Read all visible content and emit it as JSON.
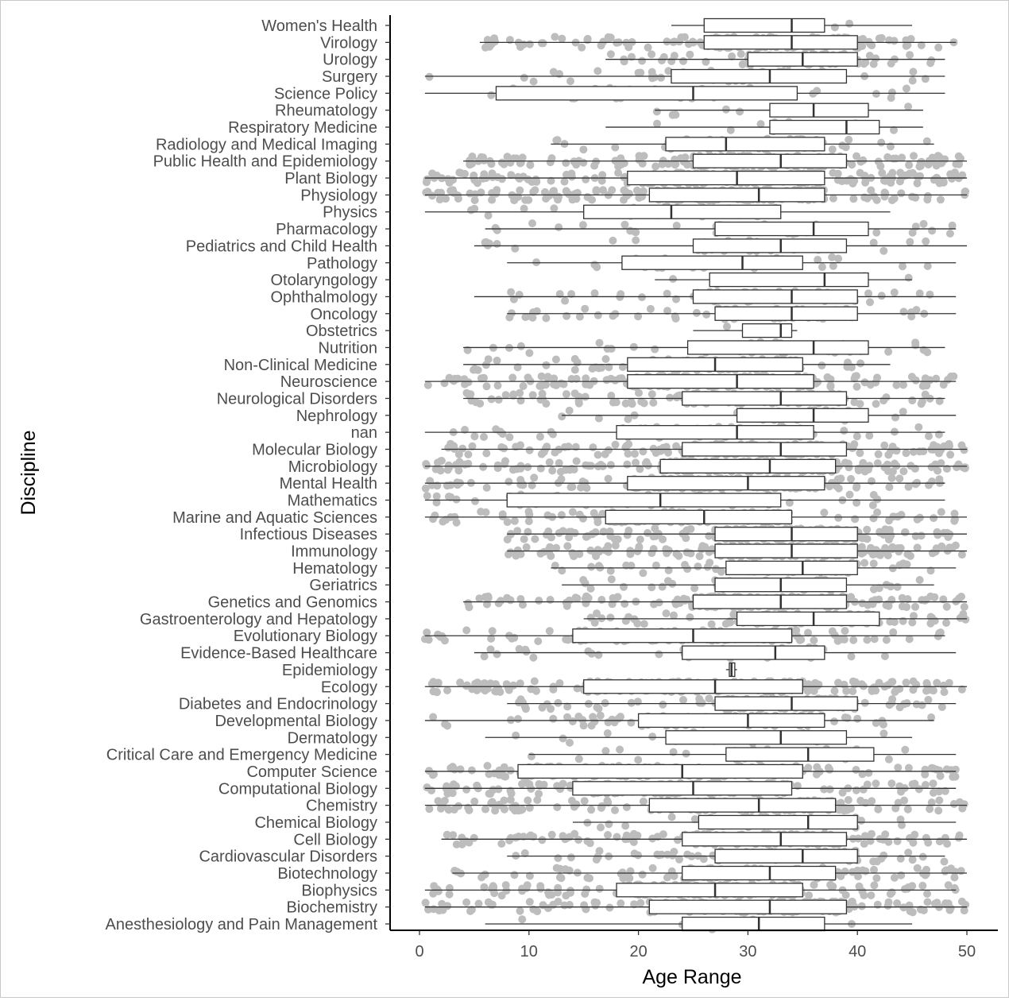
{
  "chart_data": {
    "type": "boxplot",
    "orientation": "horizontal",
    "xlabel": "Age Range",
    "ylabel": "Discipline",
    "xlim": [
      -2.5,
      52.5
    ],
    "xticks": [
      0,
      10,
      20,
      30,
      40,
      50
    ],
    "grid": false,
    "legend": "none",
    "colors": {
      "points": "#bdbdbd",
      "box_fill": "#ffffff",
      "box_stroke": "#333333",
      "axis": "#000000"
    },
    "categories": [
      "Women's Health",
      "Virology",
      "Urology",
      "Surgery",
      "Science Policy",
      "Rheumatology",
      "Respiratory Medicine",
      "Radiology and Medical Imaging",
      "Public Health and Epidemiology",
      "Plant Biology",
      "Physiology",
      "Physics",
      "Pharmacology",
      "Pediatrics and Child Health",
      "Pathology",
      "Otolaryngology",
      "Ophthalmology",
      "Oncology",
      "Obstetrics",
      "Nutrition",
      "Non-Clinical Medicine",
      "Neuroscience",
      "Neurological Disorders",
      "Nephrology",
      "nan",
      "Molecular Biology",
      "Microbiology",
      "Mental Health",
      "Mathematics",
      "Marine and Aquatic Sciences",
      "Infectious Diseases",
      "Immunology",
      "Hematology",
      "Geriatrics",
      "Genetics and Genomics",
      "Gastroenterology and Hepatology",
      "Evolutionary Biology",
      "Evidence-Based Healthcare",
      "Epidemiology",
      "Ecology",
      "Diabetes and Endocrinology",
      "Developmental Biology",
      "Dermatology",
      "Critical Care and Emergency Medicine",
      "Computer Science",
      "Computational Biology",
      "Chemistry",
      "Chemical Biology",
      "Cell Biology",
      "Cardiovascular Disorders",
      "Biotechnology",
      "Biophysics",
      "Biochemistry",
      "Anesthesiology and Pain Management"
    ],
    "boxes": [
      {
        "min": 23,
        "q1": 26,
        "median": 34,
        "q3": 37,
        "max": 45,
        "density": 0.02
      },
      {
        "min": 5.5,
        "q1": 26,
        "median": 34,
        "q3": 40,
        "max": 49,
        "density": 0.8
      },
      {
        "min": 17,
        "q1": 30,
        "median": 35,
        "q3": 40,
        "max": 48,
        "density": 0.35
      },
      {
        "min": 0.5,
        "q1": 23,
        "median": 32,
        "q3": 39,
        "max": 48,
        "density": 0.2
      },
      {
        "min": 0.5,
        "q1": 7,
        "median": 25,
        "q3": 34.5,
        "max": 48,
        "density": 0.15
      },
      {
        "min": 21.5,
        "q1": 32,
        "median": 36,
        "q3": 41,
        "max": 46,
        "density": 0.04
      },
      {
        "min": 17,
        "q1": 32,
        "median": 39,
        "q3": 42,
        "max": 46,
        "density": 0.04
      },
      {
        "min": 12,
        "q1": 22.5,
        "median": 28,
        "q3": 37,
        "max": 47,
        "density": 0.25
      },
      {
        "min": 4,
        "q1": 25,
        "median": 33,
        "q3": 39,
        "max": 50,
        "density": 1.0
      },
      {
        "min": 0.5,
        "q1": 19,
        "median": 29,
        "q3": 37,
        "max": 50,
        "density": 1.0
      },
      {
        "min": 0.5,
        "q1": 21,
        "median": 31,
        "q3": 37,
        "max": 50,
        "density": 1.0
      },
      {
        "min": 0.5,
        "q1": 15,
        "median": 23,
        "q3": 33,
        "max": 43,
        "density": 0.12
      },
      {
        "min": 6,
        "q1": 27,
        "median": 36,
        "q3": 41,
        "max": 49,
        "density": 0.15
      },
      {
        "min": 5,
        "q1": 25,
        "median": 33,
        "q3": 39,
        "max": 50,
        "density": 0.15
      },
      {
        "min": 8,
        "q1": 18.5,
        "median": 29.5,
        "q3": 35,
        "max": 49,
        "density": 0.15
      },
      {
        "min": 21.5,
        "q1": 26.5,
        "median": 37,
        "q3": 41,
        "max": 45,
        "density": 0.04
      },
      {
        "min": 5,
        "q1": 25,
        "median": 34,
        "q3": 40,
        "max": 49,
        "density": 0.3
      },
      {
        "min": 8,
        "q1": 27,
        "median": 34,
        "q3": 40,
        "max": 49,
        "density": 0.3
      },
      {
        "min": 25,
        "q1": 29.5,
        "median": 33,
        "q3": 34,
        "max": 34.5,
        "density": 0.01
      },
      {
        "min": 4,
        "q1": 24.5,
        "median": 36,
        "q3": 41,
        "max": 48,
        "density": 0.2
      },
      {
        "min": 4,
        "q1": 19,
        "median": 27,
        "q3": 35,
        "max": 43,
        "density": 0.4
      },
      {
        "min": 0.5,
        "q1": 19,
        "median": 29,
        "q3": 36,
        "max": 49,
        "density": 1.0
      },
      {
        "min": 4,
        "q1": 24,
        "median": 33,
        "q3": 39,
        "max": 48,
        "density": 0.6
      },
      {
        "min": 13,
        "q1": 29,
        "median": 36,
        "q3": 41,
        "max": 49,
        "density": 0.15
      },
      {
        "min": 0.5,
        "q1": 18,
        "median": 29,
        "q3": 36,
        "max": 48,
        "density": 0.3
      },
      {
        "min": 2,
        "q1": 24,
        "median": 33,
        "q3": 39,
        "max": 50,
        "density": 1.0
      },
      {
        "min": 0.5,
        "q1": 22,
        "median": 32,
        "q3": 38,
        "max": 50,
        "density": 1.0
      },
      {
        "min": 0.5,
        "q1": 19,
        "median": 30,
        "q3": 37,
        "max": 48,
        "density": 0.8
      },
      {
        "min": 0.5,
        "q1": 8,
        "median": 22,
        "q3": 33,
        "max": 48,
        "density": 0.25
      },
      {
        "min": 0.5,
        "q1": 17,
        "median": 26,
        "q3": 34,
        "max": 50,
        "density": 0.6
      },
      {
        "min": 8,
        "q1": 27,
        "median": 34,
        "q3": 40,
        "max": 50,
        "density": 1.0
      },
      {
        "min": 8,
        "q1": 27,
        "median": 34,
        "q3": 40,
        "max": 50,
        "density": 1.0
      },
      {
        "min": 12,
        "q1": 28,
        "median": 35,
        "q3": 40,
        "max": 49,
        "density": 0.3
      },
      {
        "min": 13,
        "q1": 27,
        "median": 33,
        "q3": 39,
        "max": 47,
        "density": 0.2
      },
      {
        "min": 4,
        "q1": 25,
        "median": 33,
        "q3": 39,
        "max": 50,
        "density": 1.0
      },
      {
        "min": 15,
        "q1": 29,
        "median": 36,
        "q3": 42,
        "max": 50,
        "density": 0.4
      },
      {
        "min": 0.5,
        "q1": 14,
        "median": 25,
        "q3": 34,
        "max": 48,
        "density": 0.6
      },
      {
        "min": 5,
        "q1": 24,
        "median": 32.5,
        "q3": 37,
        "max": 49,
        "density": 0.2
      },
      {
        "min": 28,
        "q1": 28.3,
        "median": 28.5,
        "q3": 28.8,
        "max": 29,
        "density": 0.0
      },
      {
        "min": 0.5,
        "q1": 15,
        "median": 27,
        "q3": 35,
        "max": 50,
        "density": 1.0
      },
      {
        "min": 8,
        "q1": 27,
        "median": 34,
        "q3": 40,
        "max": 49,
        "density": 0.6
      },
      {
        "min": 0.5,
        "q1": 20,
        "median": 30,
        "q3": 37,
        "max": 47,
        "density": 0.4
      },
      {
        "min": 6,
        "q1": 22.5,
        "median": 33,
        "q3": 39,
        "max": 45,
        "density": 0.1
      },
      {
        "min": 10,
        "q1": 28,
        "median": 35.5,
        "q3": 41.5,
        "max": 49,
        "density": 0.15
      },
      {
        "min": 0.5,
        "q1": 9,
        "median": 24,
        "q3": 35,
        "max": 49,
        "density": 0.8
      },
      {
        "min": 0.5,
        "q1": 14,
        "median": 25,
        "q3": 34,
        "max": 49,
        "density": 0.8
      },
      {
        "min": 0.5,
        "q1": 21,
        "median": 31,
        "q3": 38,
        "max": 50,
        "density": 0.8
      },
      {
        "min": 14,
        "q1": 25.5,
        "median": 35.5,
        "q3": 40,
        "max": 49,
        "density": 0.2
      },
      {
        "min": 2,
        "q1": 24,
        "median": 33,
        "q3": 39,
        "max": 50,
        "density": 0.8
      },
      {
        "min": 8,
        "q1": 27,
        "median": 35,
        "q3": 40,
        "max": 48,
        "density": 0.4
      },
      {
        "min": 3,
        "q1": 24,
        "median": 32,
        "q3": 38,
        "max": 50,
        "density": 0.6
      },
      {
        "min": 0.5,
        "q1": 18,
        "median": 27,
        "q3": 35,
        "max": 49,
        "density": 0.7
      },
      {
        "min": 0.5,
        "q1": 21,
        "median": 32,
        "q3": 39,
        "max": 50,
        "density": 0.8
      },
      {
        "min": 6,
        "q1": 24,
        "median": 31,
        "q3": 37,
        "max": 45,
        "density": 0.03
      }
    ]
  }
}
